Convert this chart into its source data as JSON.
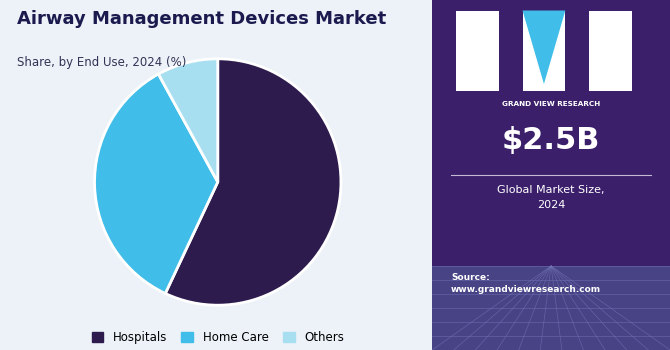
{
  "title": "Airway Management Devices Market",
  "subtitle": "Share, by End Use, 2024 (%)",
  "slices": [
    0.57,
    0.35,
    0.08
  ],
  "labels": [
    "Hospitals",
    "Home Care",
    "Others"
  ],
  "colors": [
    "#2d1b4e",
    "#40bde8",
    "#a8dff0"
  ],
  "start_angle": 90,
  "legend_labels": [
    "Hospitals",
    "Home Care",
    "Others"
  ],
  "right_panel_bg": "#3b1f6b",
  "market_size": "$2.5B",
  "market_label": "Global Market Size,\n2024",
  "source_text": "Source:\nwww.grandviewresearch.com",
  "left_bg": "#edf2f8",
  "title_color": "#1a1a4e",
  "subtitle_color": "#333355",
  "gvr_logo_text": "GRAND VIEW RESEARCH"
}
